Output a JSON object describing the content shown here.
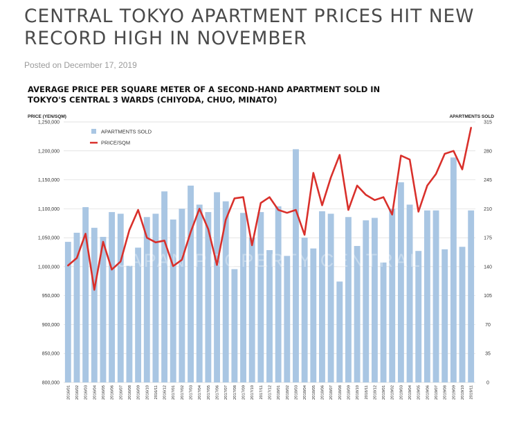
{
  "article": {
    "headline": "CENTRAL TOKYO APARTMENT PRICES HIT NEW RECORD HIGH IN NOVEMBER",
    "posted": "Posted on December 17, 2019"
  },
  "colors": {
    "bar": "#a9c6e3",
    "line": "#d9302b",
    "grid": "#d9d9d9",
    "text": "#333333"
  },
  "chart_data": {
    "type": "bar",
    "title": "AVERAGE PRICE PER SQUARE METER OF A SECOND-HAND APARTMENT SOLD IN TOKYO'S CENTRAL 3 WARDS (CHIYODA, CHUO, MINATO)",
    "ylabel": "PRICE (YEN/SQM)",
    "y2label": "APARTMENTS SOLD",
    "watermark": "JAPAN PROPERTY CENTRAL",
    "ylim": [
      800000,
      1250000
    ],
    "y2lim": [
      0,
      315
    ],
    "y_ticks": [
      "1,250,000",
      "1,200,000",
      "1,150,000",
      "1,100,000",
      "1,050,000",
      "1,000,000",
      "950,000",
      "900,000",
      "850,000",
      "800,000"
    ],
    "y2_ticks": [
      "315",
      "280",
      "245",
      "210",
      "175",
      "140",
      "105",
      "70",
      "35",
      "0"
    ],
    "grid": true,
    "legend_position": "top-left",
    "categories": [
      "2016/01",
      "2016/02",
      "2016/03",
      "2016/04",
      "2016/05",
      "2016/06",
      "2016/07",
      "2016/08",
      "2016/09",
      "2016/10",
      "2016/11",
      "2016/12",
      "2017/01",
      "2017/02",
      "2017/03",
      "2017/04",
      "2017/05",
      "2017/06",
      "2017/07",
      "2017/08",
      "2017/09",
      "2017/10",
      "2017/11",
      "2017/12",
      "2018/01",
      "2018/02",
      "2018/03",
      "2018/04",
      "2018/05",
      "2018/06",
      "2018/07",
      "2018/08",
      "2018/09",
      "2018/10",
      "2018/11",
      "2018/12",
      "2019/01",
      "2019/02",
      "2019/03",
      "2019/04",
      "2019/05",
      "2019/06",
      "2019/07",
      "2019/08",
      "2019/09",
      "2019/10",
      "2019/11"
    ],
    "series": [
      {
        "name": "APARTMENTS SOLD",
        "type": "bar",
        "axis": "right",
        "values": [
          170,
          181,
          212,
          187,
          176,
          206,
          204,
          141,
          163,
          200,
          204,
          231,
          197,
          210,
          238,
          215,
          206,
          230,
          219,
          137,
          205,
          175,
          206,
          160,
          213,
          153,
          282,
          175,
          162,
          207,
          204,
          122,
          200,
          165,
          196,
          199,
          145,
          210,
          242,
          215,
          159,
          208,
          208,
          161,
          272,
          164,
          208
        ]
      },
      {
        "name": "PRICE/SQM",
        "type": "line",
        "axis": "left",
        "values": [
          1002000,
          1015000,
          1057000,
          960000,
          1043000,
          995000,
          1009000,
          1063000,
          1098000,
          1050000,
          1042000,
          1045000,
          1001000,
          1012000,
          1060000,
          1100000,
          1065000,
          1003000,
          1081000,
          1118000,
          1120000,
          1037000,
          1110000,
          1120000,
          1098000,
          1093000,
          1098000,
          1055000,
          1162000,
          1106000,
          1154000,
          1193000,
          1098000,
          1140000,
          1124000,
          1115000,
          1120000,
          1090000,
          1192000,
          1185000,
          1095000,
          1140000,
          1160000,
          1195000,
          1200000,
          1168000,
          1240000
        ]
      }
    ]
  }
}
